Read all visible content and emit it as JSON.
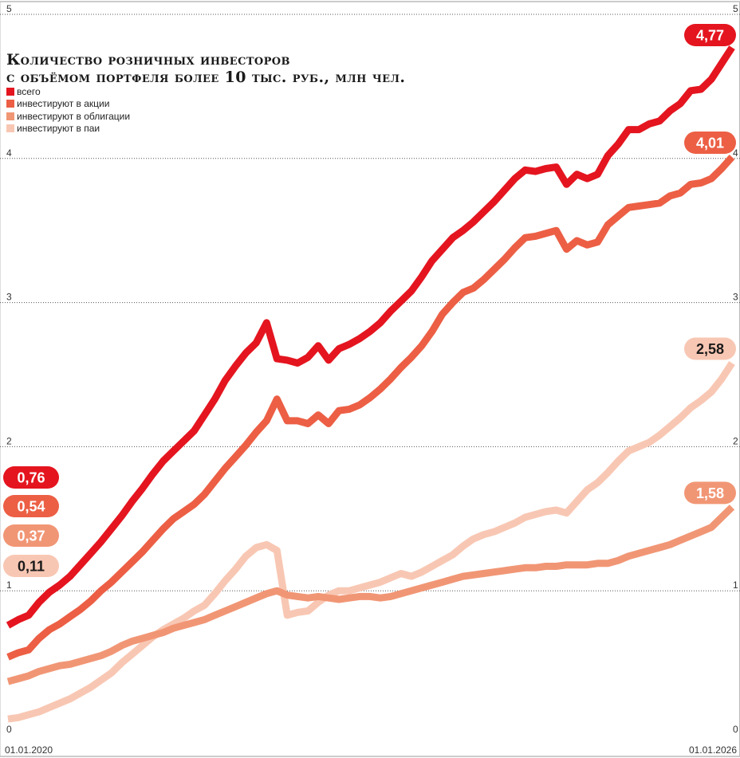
{
  "title_line1": "Количество розничных инвесторов",
  "title_line2": "с объёмом портфеля более 10 тыс. руб., млн чел.",
  "legend": [
    {
      "label": "всего",
      "color": "#e4151f"
    },
    {
      "label": "инвестируют в акции",
      "color": "#ec5f45"
    },
    {
      "label": "инвестируют в облигации",
      "color": "#f19675"
    },
    {
      "label": "инвестируют в паи",
      "color": "#f8c7b3"
    }
  ],
  "x_start_label": "01.01.2020",
  "x_end_label": "01.01.2026",
  "chart_data": {
    "type": "line",
    "x_start": "2020-01-01",
    "x_end": "2026-01-01",
    "ylim": [
      0,
      5
    ],
    "yticks": [
      "0",
      "1",
      "2",
      "3",
      "4",
      "5"
    ],
    "grid": true,
    "series": [
      {
        "name": "всего",
        "color": "#e4151f",
        "start_label": "0,76",
        "end_label": "4,77",
        "values": [
          0.76,
          0.8,
          0.83,
          0.92,
          0.99,
          1.04,
          1.1,
          1.18,
          1.26,
          1.34,
          1.43,
          1.52,
          1.62,
          1.71,
          1.81,
          1.9,
          1.97,
          2.04,
          2.11,
          2.22,
          2.33,
          2.46,
          2.56,
          2.65,
          2.72,
          2.86,
          2.61,
          2.6,
          2.58,
          2.62,
          2.7,
          2.6,
          2.68,
          2.71,
          2.75,
          2.8,
          2.86,
          2.94,
          3.01,
          3.08,
          3.18,
          3.29,
          3.37,
          3.45,
          3.5,
          3.56,
          3.63,
          3.7,
          3.78,
          3.86,
          3.92,
          3.91,
          3.93,
          3.94,
          3.82,
          3.89,
          3.86,
          3.89,
          4.02,
          4.1,
          4.2,
          4.2,
          4.24,
          4.26,
          4.33,
          4.38,
          4.47,
          4.48,
          4.55,
          4.66,
          4.77
        ]
      },
      {
        "name": "инвестируют в акции",
        "color": "#ec5f45",
        "start_label": "0,54",
        "end_label": "4,01",
        "values": [
          0.54,
          0.57,
          0.59,
          0.67,
          0.73,
          0.77,
          0.82,
          0.87,
          0.93,
          1.0,
          1.06,
          1.13,
          1.2,
          1.27,
          1.35,
          1.43,
          1.5,
          1.55,
          1.6,
          1.67,
          1.76,
          1.85,
          1.93,
          2.01,
          2.1,
          2.18,
          2.33,
          2.18,
          2.18,
          2.16,
          2.22,
          2.16,
          2.25,
          2.26,
          2.29,
          2.34,
          2.4,
          2.47,
          2.55,
          2.62,
          2.7,
          2.8,
          2.92,
          3.0,
          3.07,
          3.1,
          3.16,
          3.23,
          3.3,
          3.38,
          3.45,
          3.46,
          3.48,
          3.5,
          3.37,
          3.43,
          3.4,
          3.42,
          3.54,
          3.6,
          3.66,
          3.67,
          3.68,
          3.69,
          3.74,
          3.76,
          3.82,
          3.83,
          3.86,
          3.93,
          4.01
        ]
      },
      {
        "name": "инвестируют в облигации",
        "color": "#f19675",
        "start_label": "0,37",
        "end_label": "1,58",
        "values": [
          0.37,
          0.39,
          0.41,
          0.44,
          0.46,
          0.48,
          0.49,
          0.51,
          0.53,
          0.55,
          0.58,
          0.62,
          0.65,
          0.67,
          0.69,
          0.71,
          0.74,
          0.76,
          0.78,
          0.8,
          0.83,
          0.86,
          0.89,
          0.92,
          0.95,
          0.98,
          1.0,
          0.97,
          0.96,
          0.95,
          0.96,
          0.95,
          0.94,
          0.95,
          0.96,
          0.96,
          0.95,
          0.96,
          0.98,
          1.0,
          1.02,
          1.04,
          1.06,
          1.08,
          1.1,
          1.11,
          1.12,
          1.13,
          1.14,
          1.15,
          1.16,
          1.16,
          1.17,
          1.17,
          1.18,
          1.18,
          1.18,
          1.19,
          1.19,
          1.21,
          1.24,
          1.26,
          1.28,
          1.3,
          1.32,
          1.35,
          1.38,
          1.41,
          1.44,
          1.51,
          1.58
        ]
      },
      {
        "name": "инвестируют в паи",
        "color": "#f8c7b3",
        "start_label": "0,11",
        "end_label": "2,58",
        "values": [
          0.11,
          0.12,
          0.14,
          0.16,
          0.19,
          0.22,
          0.25,
          0.29,
          0.33,
          0.38,
          0.43,
          0.5,
          0.56,
          0.62,
          0.68,
          0.73,
          0.77,
          0.81,
          0.86,
          0.9,
          0.98,
          1.07,
          1.15,
          1.24,
          1.3,
          1.32,
          1.28,
          0.83,
          0.85,
          0.86,
          0.92,
          0.97,
          1.0,
          1.0,
          1.02,
          1.04,
          1.06,
          1.09,
          1.12,
          1.1,
          1.13,
          1.17,
          1.21,
          1.25,
          1.31,
          1.36,
          1.39,
          1.41,
          1.44,
          1.47,
          1.51,
          1.53,
          1.55,
          1.56,
          1.54,
          1.62,
          1.7,
          1.75,
          1.82,
          1.9,
          1.97,
          2.0,
          2.03,
          2.08,
          2.14,
          2.2,
          2.27,
          2.32,
          2.38,
          2.47,
          2.58
        ]
      }
    ]
  }
}
